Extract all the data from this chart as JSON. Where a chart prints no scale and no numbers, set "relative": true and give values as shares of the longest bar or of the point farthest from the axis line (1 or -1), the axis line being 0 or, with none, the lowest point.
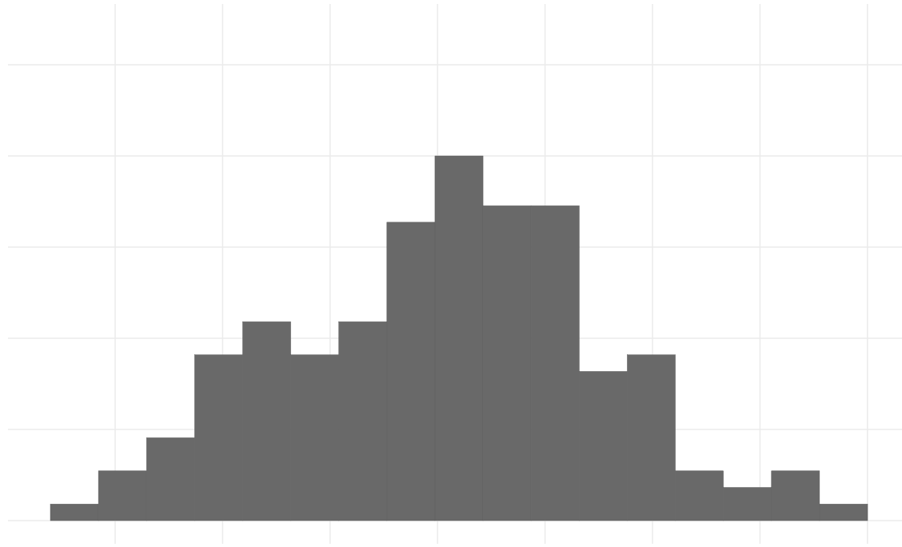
{
  "chart_data": {
    "type": "bar",
    "relative": true,
    "grid": true,
    "color": "#696969",
    "categories": [
      null,
      null,
      null,
      null,
      null,
      null,
      null,
      null,
      null,
      null,
      null,
      null,
      null,
      null,
      null,
      null,
      null
    ],
    "values": [
      0.0455,
      0.1364,
      0.2273,
      0.4545,
      0.5455,
      0.4545,
      0.5455,
      0.8182,
      1,
      0.8636,
      0.8636,
      0.4091,
      0.4545,
      0.1364,
      0.0909,
      0.1364,
      0.0455
    ]
  }
}
